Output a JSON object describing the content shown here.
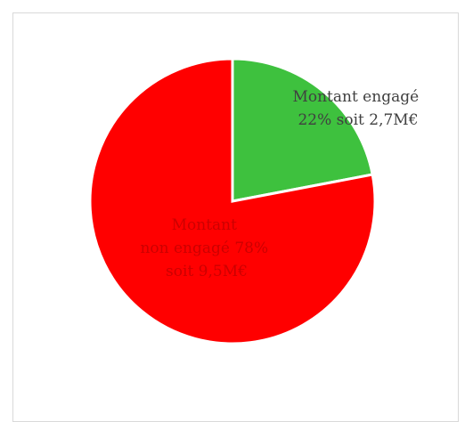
{
  "chart_data": {
    "type": "pie",
    "title": "",
    "slices": [
      {
        "name": "Montant engagé",
        "percent": 22,
        "amount": "2,7M€",
        "color": "#3ec13e",
        "label_lines": [
          "Montant engagé",
          "22% soit 2,7M€"
        ],
        "label_color": "#404040"
      },
      {
        "name": "Montant non engagé",
        "percent": 78,
        "amount": "9,5M€",
        "color": "#ff0000",
        "label_lines": [
          "Montant",
          "non engagé 78%",
          "soit 9,5M€"
        ],
        "label_color": "#cc0000"
      }
    ],
    "legend": false,
    "slice_separator_color": "#ffffff"
  }
}
